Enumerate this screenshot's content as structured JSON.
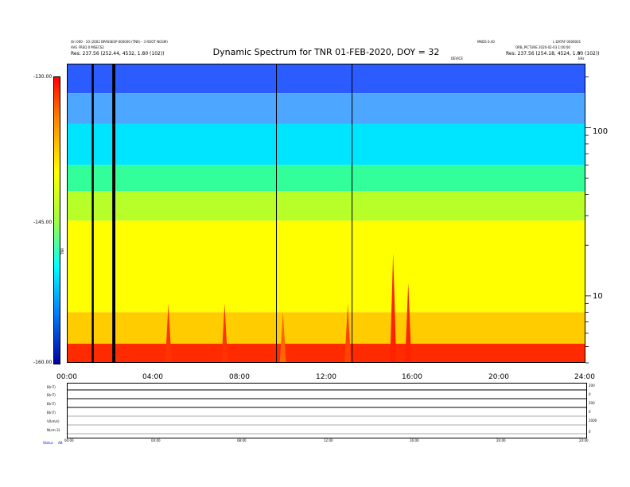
{
  "header": {
    "left_line1": "Ori 000 - 10 (2002 BPASSESP 000000 (TNR) - 3 ROOT NGSM)",
    "left_line2": "AVG FREQ 0 MSECS2",
    "left_line3": "Res:    237.56 (252.44, 4532, 1.80 (102))",
    "right_line1a": "MKDS 0.40",
    "right_line1b": "L DATAF 0000001",
    "right_line2": "ORB_PICTURE 2020-02-03 1:00:00",
    "right_line3": "Res:    237.56 (254.18, 4524, 1.80 (102))",
    "top_marker": "DEVICE",
    "corner_label": "kHz",
    "corner_v": "V"
  },
  "chart_data": {
    "type": "heatmap",
    "title": "Dynamic Spectrum for TNR 01-FEB-2020, DOY = 32",
    "x_ticks": [
      "00:00",
      "04:00",
      "08:00",
      "12:00",
      "16:00",
      "20:00",
      "24:00"
    ],
    "x_range_hours": [
      0,
      24
    ],
    "y_scale": "log",
    "y_range": [
      4,
      240
    ],
    "y_ticks": [
      {
        "value": 100,
        "label": "100"
      },
      {
        "value": 10,
        "label": "10"
      }
    ],
    "colorbar": {
      "range": [
        -160,
        -130
      ],
      "ticks": [
        {
          "value": -130,
          "label": "-130.00"
        },
        {
          "value": -145,
          "label": "-145.00"
        },
        {
          "value": -160,
          "label": "-160.00"
        }
      ],
      "label": "TNR"
    },
    "bands": [
      {
        "f_lo": 160,
        "f_hi": 240,
        "color": "#2a5cff"
      },
      {
        "f_lo": 105,
        "f_hi": 160,
        "color": "#4da6ff"
      },
      {
        "f_lo": 60,
        "f_hi": 105,
        "color": "#00e5ff"
      },
      {
        "f_lo": 42,
        "f_hi": 60,
        "color": "#32ff9a"
      },
      {
        "f_lo": 28,
        "f_hi": 42,
        "color": "#b8ff2a"
      },
      {
        "f_lo": 8,
        "f_hi": 28,
        "color": "#ffff00"
      },
      {
        "f_lo": 5.2,
        "f_hi": 8,
        "color": "#ffcc00"
      },
      {
        "f_lo": 4,
        "f_hi": 5.2,
        "color": "#ff2a00"
      }
    ],
    "data_gaps_hours": [
      1.2,
      2.15,
      2.2,
      9.7,
      13.2
    ],
    "bursts": [
      {
        "t": 4.7,
        "f_top": 9,
        "color": "#ff3300"
      },
      {
        "t": 7.3,
        "f_top": 9,
        "color": "#ff3300"
      },
      {
        "t": 10.0,
        "f_top": 8,
        "color": "#ff6600"
      },
      {
        "t": 13.0,
        "f_top": 9,
        "color": "#ff4400"
      },
      {
        "t": 15.1,
        "f_top": 18,
        "color": "#ff2200"
      },
      {
        "t": 15.8,
        "f_top": 12,
        "color": "#ff2200"
      }
    ]
  },
  "bottom_panel": {
    "row_labels": [
      "B(nT)",
      "B(nT)",
      "B(nT)",
      "B(nT)",
      "V(km/s)",
      "N(cm-3)"
    ],
    "right_values": [
      "200",
      "0",
      "200",
      "0",
      "2000",
      "0"
    ],
    "x_ticks": [
      "00:00",
      "04:00",
      "08:00",
      "12:00",
      "16:00",
      "20:00",
      "24:00"
    ],
    "status_label": "Status",
    "status_value": "AB"
  }
}
